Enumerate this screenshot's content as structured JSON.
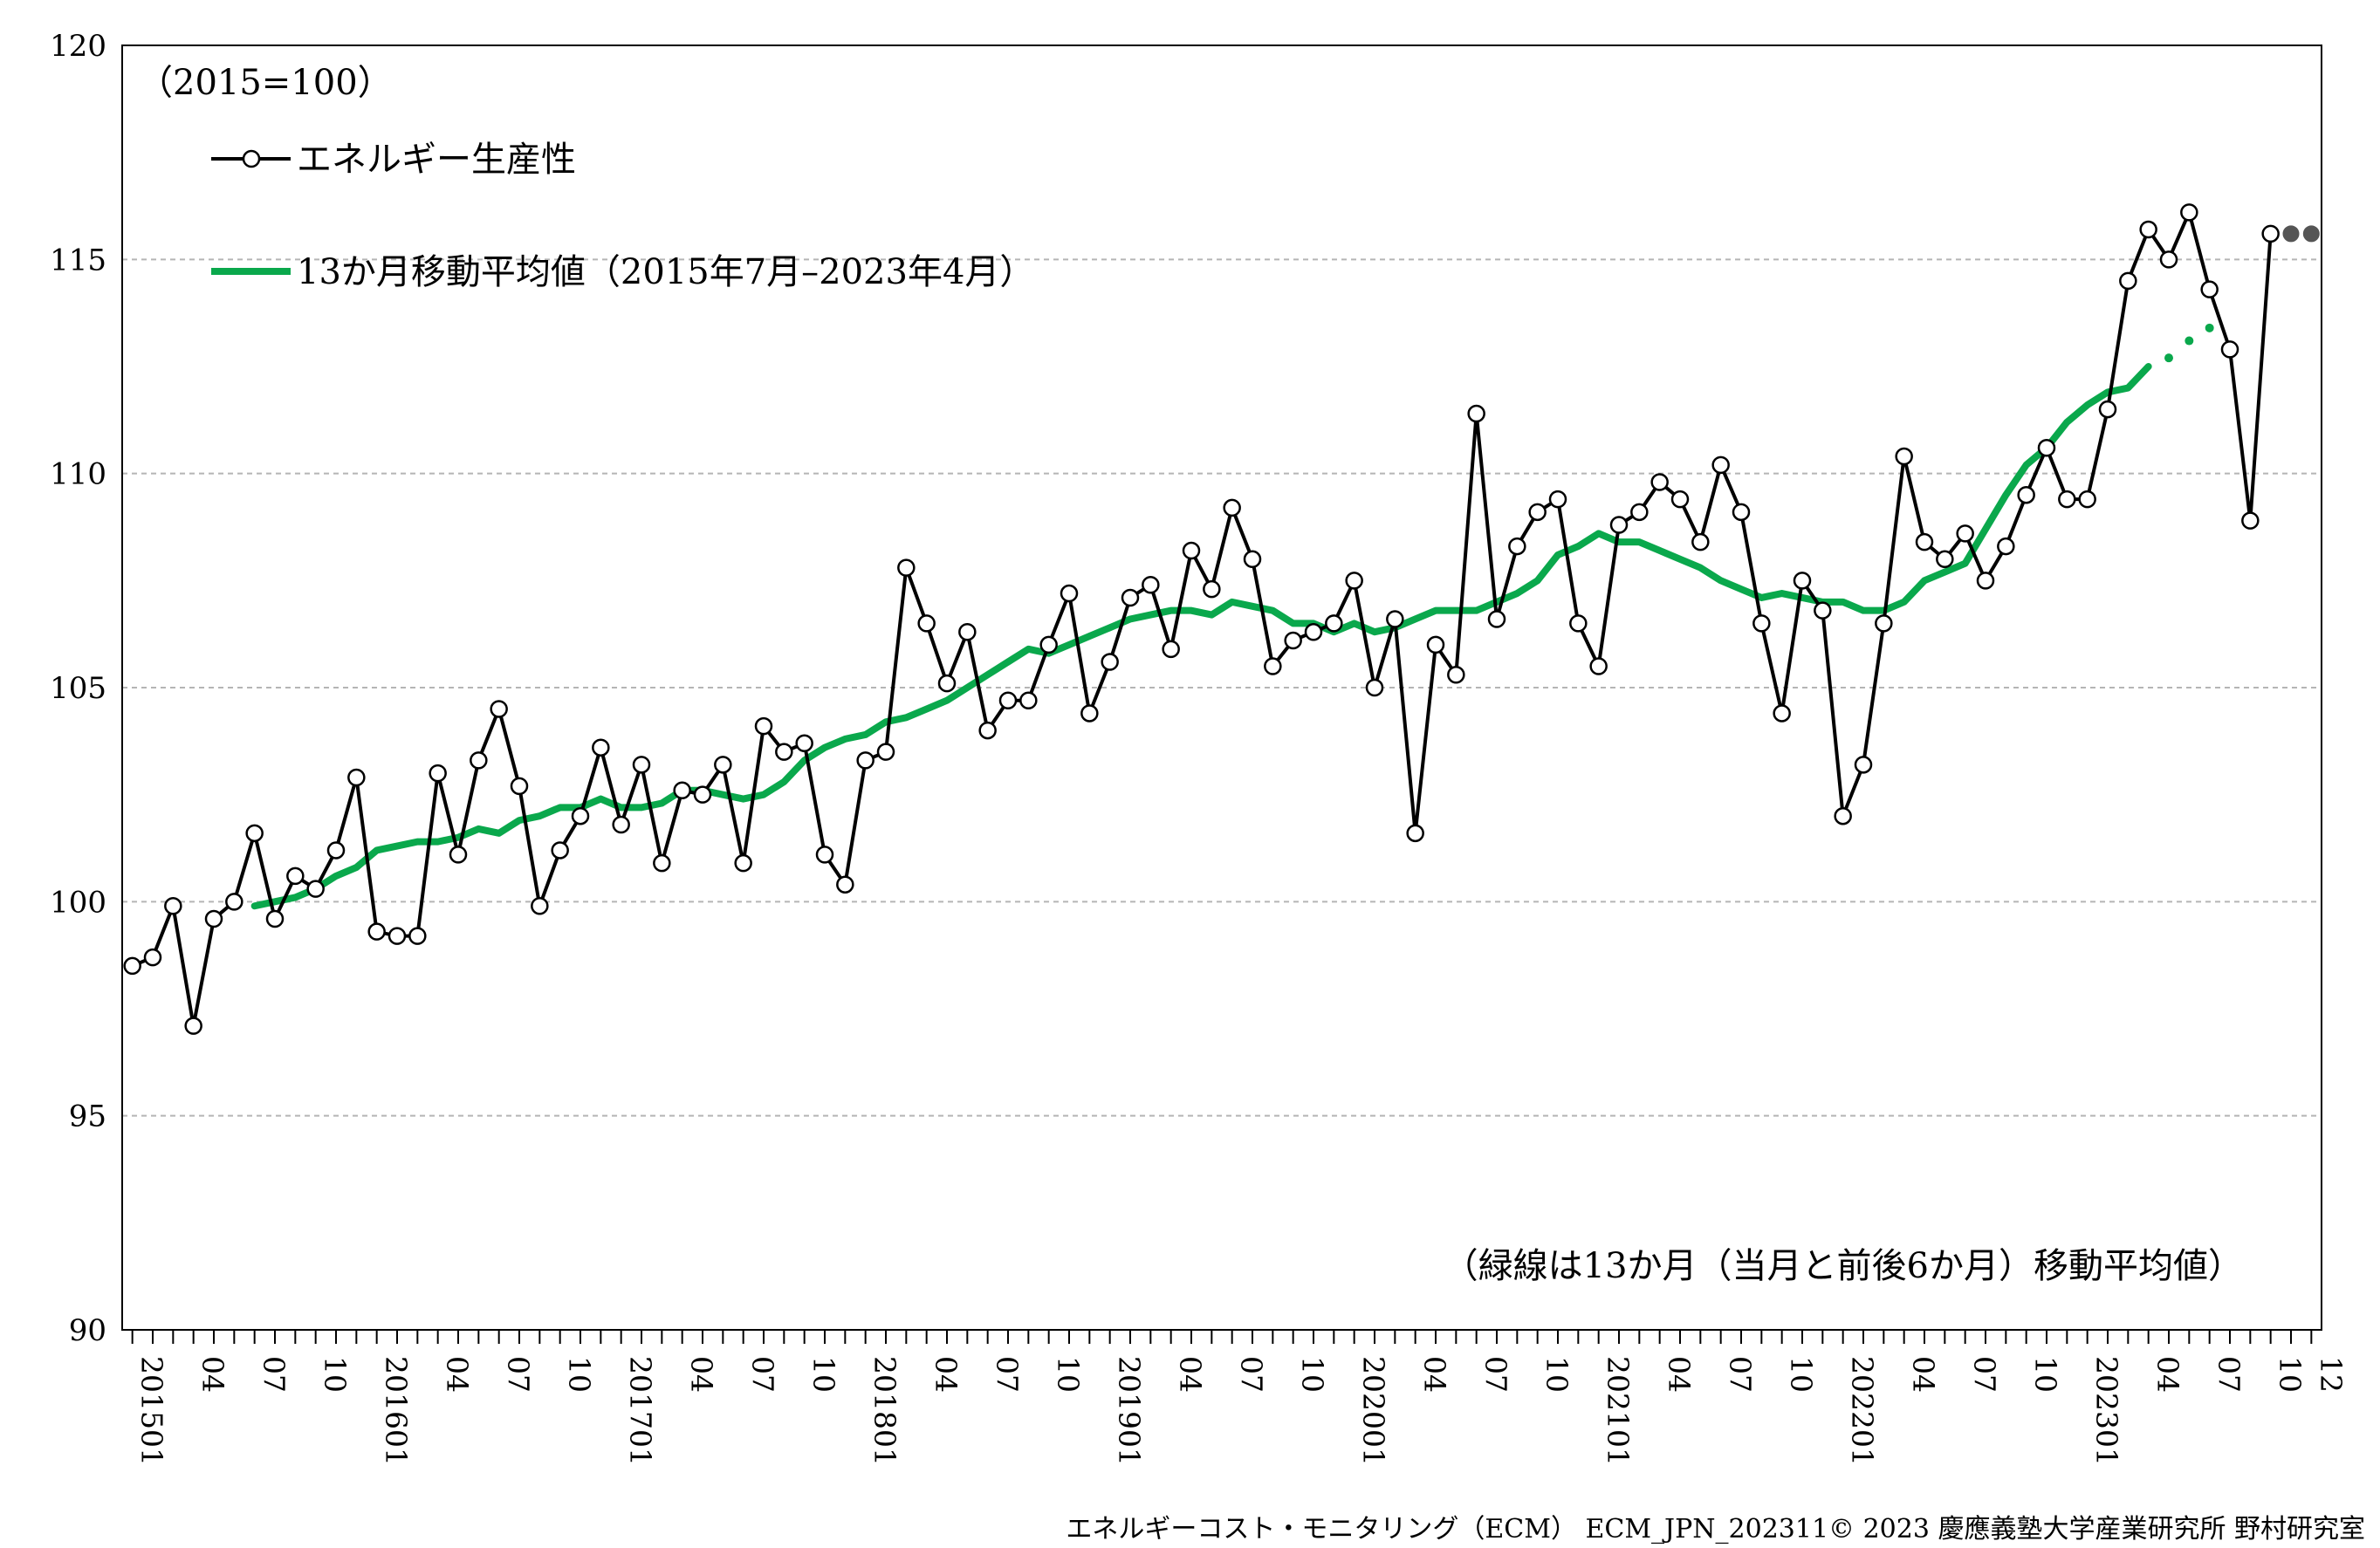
{
  "chart_data": {
    "type": "line",
    "unit_note": "（2015=100）",
    "annotation": "（緑線は13か月（当月と前後6か月）移動平均値）",
    "footer": "エネルギーコスト・モニタリング（ECM） ECM_JPN_202311© 2023 慶應義塾大学産業研究所 野村研究室",
    "ylim": [
      90,
      120
    ],
    "y_ticks": [
      120,
      115,
      110,
      105,
      100,
      95,
      90
    ],
    "grid": "horizontal dashed",
    "legend_placement": "top-left",
    "x_tick_labels": [
      "201501",
      "04",
      "07",
      "10",
      "201601",
      "04",
      "07",
      "10",
      "201701",
      "04",
      "07",
      "10",
      "201801",
      "04",
      "07",
      "10",
      "201901",
      "04",
      "07",
      "10",
      "202001",
      "04",
      "07",
      "10",
      "202101",
      "04",
      "07",
      "10",
      "202201",
      "04",
      "07",
      "10",
      "202301",
      "04",
      "07",
      "10",
      "12"
    ],
    "series": [
      {
        "name": "エネルギー生産性",
        "color": "#000000",
        "marker": "open-circle",
        "x_start": "2015-01",
        "values": [
          98.5,
          98.7,
          99.9,
          97.1,
          99.6,
          100.0,
          101.6,
          99.6,
          100.6,
          100.3,
          101.2,
          102.9,
          99.3,
          99.2,
          99.2,
          103.0,
          101.1,
          103.3,
          104.5,
          102.7,
          99.9,
          101.2,
          102.0,
          103.6,
          101.8,
          103.2,
          100.9,
          102.6,
          102.5,
          103.2,
          100.9,
          104.1,
          103.5,
          103.7,
          101.1,
          100.4,
          103.3,
          103.5,
          107.8,
          106.5,
          105.1,
          106.3,
          104.0,
          104.7,
          104.7,
          106.0,
          107.2,
          104.4,
          105.6,
          107.1,
          107.4,
          105.9,
          108.2,
          107.3,
          109.2,
          108.0,
          105.5,
          106.1,
          106.3,
          106.5,
          107.5,
          105.0,
          106.6,
          101.6,
          106.0,
          105.3,
          111.4,
          106.6,
          108.3,
          109.1,
          109.4,
          106.5,
          105.5,
          108.8,
          109.1,
          109.8,
          109.4,
          108.4,
          110.2,
          109.1,
          106.5,
          104.4,
          107.5,
          106.8,
          102.0,
          103.2,
          106.5,
          110.4,
          108.4,
          108.0,
          108.6,
          107.5,
          108.3,
          109.5,
          110.6,
          109.4,
          109.4,
          111.5,
          114.5,
          115.7,
          115.0,
          116.1,
          114.3,
          112.9,
          108.9,
          115.6
        ],
        "projection": [
          115.6,
          115.6
        ]
      },
      {
        "name": "13か月移動平均値（2015年7月–2023年4月）",
        "color": "#0aa84c",
        "x_start": "2015-07",
        "values": [
          99.9,
          100.0,
          100.1,
          100.3,
          100.6,
          100.8,
          101.2,
          101.3,
          101.4,
          101.4,
          101.5,
          101.7,
          101.6,
          101.9,
          102.0,
          102.2,
          102.2,
          102.4,
          102.2,
          102.2,
          102.3,
          102.6,
          102.6,
          102.5,
          102.4,
          102.5,
          102.8,
          103.3,
          103.6,
          103.8,
          103.9,
          104.2,
          104.3,
          104.5,
          104.7,
          105.0,
          105.3,
          105.6,
          105.9,
          105.8,
          106.0,
          106.2,
          106.4,
          106.6,
          106.7,
          106.8,
          106.8,
          106.7,
          107.0,
          106.9,
          106.8,
          106.5,
          106.5,
          106.3,
          106.5,
          106.3,
          106.4,
          106.6,
          106.8,
          106.8,
          106.8,
          107.0,
          107.2,
          107.5,
          108.1,
          108.3,
          108.6,
          108.4,
          108.4,
          108.2,
          108.0,
          107.8,
          107.5,
          107.3,
          107.1,
          107.2,
          107.1,
          107.0,
          107.0,
          106.8,
          106.8,
          107.0,
          107.5,
          107.7,
          107.9,
          108.7,
          109.5,
          110.2,
          110.6,
          111.2,
          111.6,
          111.9,
          112.0,
          112.5
        ],
        "projection": [
          112.7,
          113.1,
          113.4
        ]
      }
    ]
  }
}
